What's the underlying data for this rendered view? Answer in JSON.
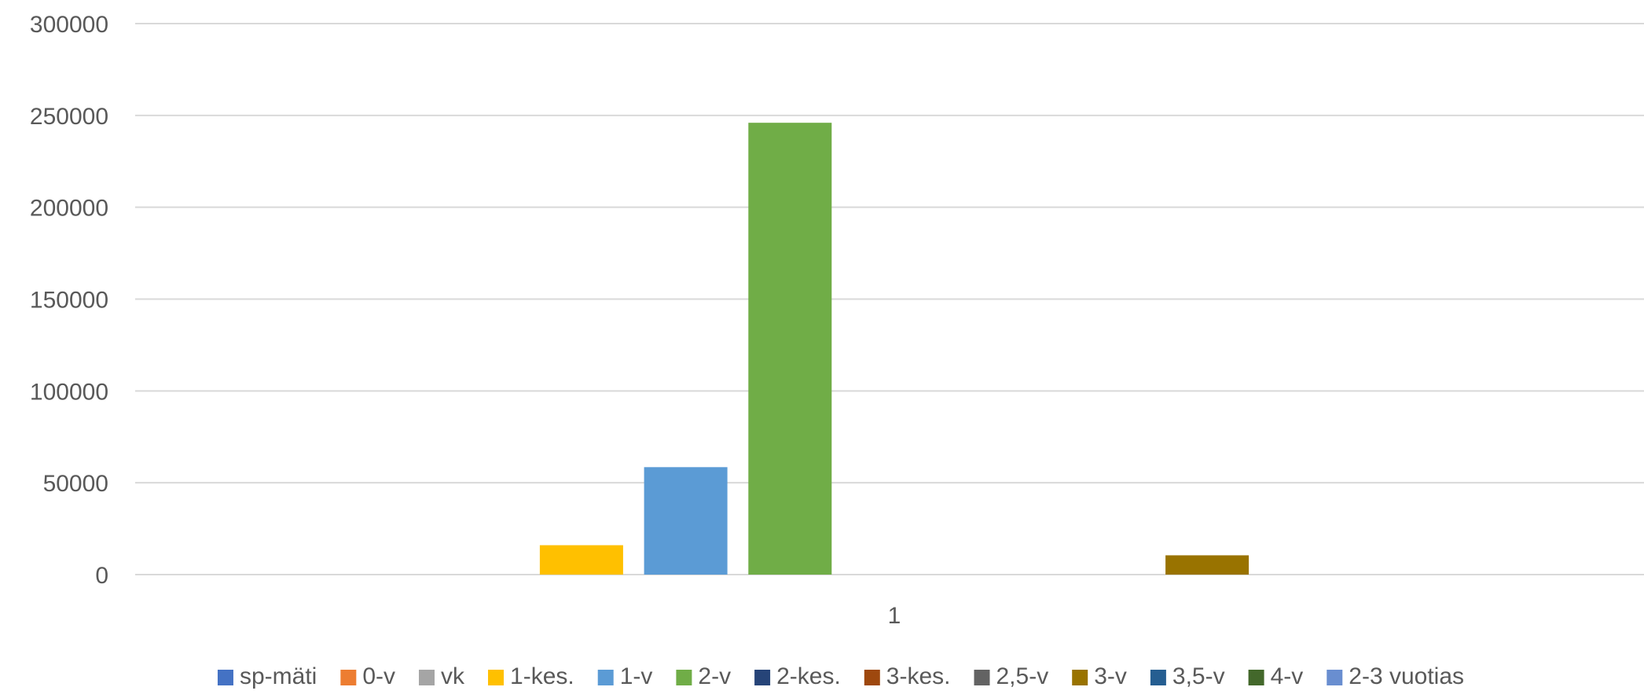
{
  "chart_data": {
    "type": "bar",
    "categories": [
      "1"
    ],
    "ylim": [
      0,
      300000
    ],
    "yticks": [
      0,
      50000,
      100000,
      150000,
      200000,
      250000,
      300000
    ],
    "grid": true,
    "legend_position": "bottom",
    "series": [
      {
        "name": "sp-mäti",
        "values": [
          0
        ],
        "color": "#4472C4"
      },
      {
        "name": "0-v",
        "values": [
          0
        ],
        "color": "#ED7D31"
      },
      {
        "name": "vk",
        "values": [
          0
        ],
        "color": "#A5A5A5"
      },
      {
        "name": "1-kes.",
        "values": [
          16000
        ],
        "color": "#FFC000"
      },
      {
        "name": "1-v",
        "values": [
          58500
        ],
        "color": "#5B9BD5"
      },
      {
        "name": "2-v",
        "values": [
          246000
        ],
        "color": "#70AD47"
      },
      {
        "name": "2-kes.",
        "values": [
          0
        ],
        "color": "#264478"
      },
      {
        "name": "3-kes.",
        "values": [
          0
        ],
        "color": "#9E480E"
      },
      {
        "name": "2,5-v",
        "values": [
          0
        ],
        "color": "#636363"
      },
      {
        "name": "3-v",
        "values": [
          10500
        ],
        "color": "#997300"
      },
      {
        "name": "3,5-v",
        "values": [
          0
        ],
        "color": "#255E91"
      },
      {
        "name": "4-v",
        "values": [
          0
        ],
        "color": "#43682B"
      },
      {
        "name": "2-3 vuotias",
        "values": [
          0
        ],
        "color": "#698ED0"
      }
    ]
  }
}
